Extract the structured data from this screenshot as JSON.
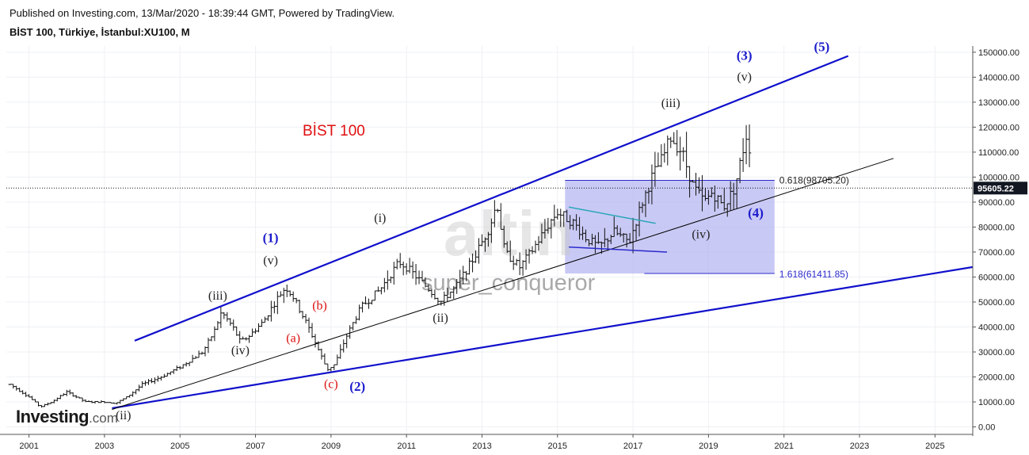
{
  "header": {
    "published": "Published on Investing.com, 13/Mar/2020 - 18:39:44 GMT, Powered by TradingView.",
    "symbol": "BİST 100, Türkiye, İstanbul:XU100, M"
  },
  "logo": {
    "main": "Investing",
    "suffix": ".com"
  },
  "watermark": {
    "brand": "altin",
    "user": "super_conqueror"
  },
  "colors": {
    "up": "#111111",
    "down": "#111111",
    "channel": "#1010cc",
    "wave_major": "#1a1acc",
    "wave_minor": "#222222",
    "wave_corrective": "#dd1111",
    "chart_title": "#e01010",
    "fib_box": "#b7b7f2",
    "fib_border": "#2a2acc",
    "price_tag": "#131722",
    "grid": "#eef0f3"
  },
  "chart_data": {
    "type": "candlestick",
    "interval": "monthly",
    "title": "BİST 100",
    "x_ticks": [
      "2001",
      "2003",
      "2005",
      "2007",
      "2009",
      "2011",
      "2013",
      "2015",
      "2017",
      "2019",
      "2021",
      "2023",
      "2025"
    ],
    "y_ticks": [
      "0.00",
      "10000.00",
      "20000.00",
      "30000.00",
      "40000.00",
      "50000.00",
      "60000.00",
      "70000.00",
      "80000.00",
      "90000.00",
      "100000.00",
      "110000.00",
      "120000.00",
      "130000.00",
      "140000.00",
      "150000.00"
    ],
    "xlim": [
      2000.4,
      2026.0
    ],
    "ylim": [
      -3000,
      152500
    ],
    "last_price": 95605.22,
    "last_price_label": "95605.22",
    "anchors": [
      [
        2000.5,
        17000
      ],
      [
        2001.0,
        12000
      ],
      [
        2001.3,
        8000
      ],
      [
        2001.6,
        10000
      ],
      [
        2002.0,
        14000
      ],
      [
        2002.5,
        10000
      ],
      [
        2003.0,
        10000
      ],
      [
        2003.3,
        9500
      ],
      [
        2003.6,
        12000
      ],
      [
        2004.0,
        17000
      ],
      [
        2004.5,
        20000
      ],
      [
        2005.0,
        24000
      ],
      [
        2005.6,
        30000
      ],
      [
        2005.9,
        38000
      ],
      [
        2006.1,
        46000
      ],
      [
        2006.4,
        40000
      ],
      [
        2006.6,
        34000
      ],
      [
        2006.8,
        36000
      ],
      [
        2007.2,
        42000
      ],
      [
        2007.6,
        52000
      ],
      [
        2007.8,
        56000
      ],
      [
        2008.0,
        52000
      ],
      [
        2008.4,
        40000
      ],
      [
        2008.9,
        23000
      ],
      [
        2009.1,
        25000
      ],
      [
        2009.4,
        36000
      ],
      [
        2009.8,
        48000
      ],
      [
        2010.3,
        55000
      ],
      [
        2010.8,
        66000
      ],
      [
        2011.0,
        64000
      ],
      [
        2011.6,
        55000
      ],
      [
        2011.9,
        50000
      ],
      [
        2012.3,
        56000
      ],
      [
        2012.8,
        68000
      ],
      [
        2013.2,
        80000
      ],
      [
        2013.4,
        90000
      ],
      [
        2013.6,
        70000
      ],
      [
        2014.0,
        64000
      ],
      [
        2014.3,
        70000
      ],
      [
        2014.8,
        82000
      ],
      [
        2015.0,
        86000
      ],
      [
        2015.4,
        82000
      ],
      [
        2015.8,
        75000
      ],
      [
        2016.1,
        72000
      ],
      [
        2016.5,
        78000
      ],
      [
        2016.9,
        74000
      ],
      [
        2017.2,
        88000
      ],
      [
        2017.5,
        100000
      ],
      [
        2017.8,
        108000
      ],
      [
        2018.0,
        116000
      ],
      [
        2018.3,
        110000
      ],
      [
        2018.6,
        96000
      ],
      [
        2018.9,
        90000
      ],
      [
        2019.1,
        94000
      ],
      [
        2019.4,
        88000
      ],
      [
        2019.7,
        96000
      ],
      [
        2019.9,
        110000
      ],
      [
        2020.05,
        120000
      ],
      [
        2020.15,
        95605
      ]
    ],
    "channel_lines": [
      {
        "from": [
          2003.8,
          34500
        ],
        "to": [
          2022.7,
          148500
        ],
        "color": "#1010cc"
      },
      {
        "from": [
          2003.2,
          7500
        ],
        "to": [
          2026.0,
          64000
        ],
        "color": "#1010cc"
      },
      {
        "from": [
          2003.2,
          7000
        ],
        "to": [
          2023.9,
          107500
        ],
        "color": "#000000"
      }
    ],
    "inner_lines": [
      {
        "from": [
          2015.3,
          88000
        ],
        "to": [
          2017.6,
          81500
        ],
        "color": "#2aa6b8"
      },
      {
        "from": [
          2015.3,
          72000
        ],
        "to": [
          2017.9,
          70000
        ],
        "color": "#2a2acc"
      }
    ],
    "fib_box": {
      "x0": 2015.2,
      "x1": 2020.75,
      "y_top": 98705.2,
      "y_bottom": 61411.85,
      "top_label": "0.618(98705.20)",
      "bottom_label": "1.618(61411.85)"
    },
    "wave_labels": [
      {
        "text": "(1)",
        "x": 2007.4,
        "y": 74000,
        "kind": "major"
      },
      {
        "text": "(2)",
        "x": 2009.7,
        "y": 14500,
        "kind": "major"
      },
      {
        "text": "(3)",
        "x": 2019.95,
        "y": 147000,
        "kind": "major"
      },
      {
        "text": "(4)",
        "x": 2020.25,
        "y": 84000,
        "kind": "major"
      },
      {
        "text": "(5)",
        "x": 2022.0,
        "y": 150500,
        "kind": "major"
      },
      {
        "text": "(i)",
        "x": 2010.3,
        "y": 82000,
        "kind": "minor"
      },
      {
        "text": "(ii)",
        "x": 2003.5,
        "y": 3000,
        "kind": "minor"
      },
      {
        "text": "(ii)",
        "x": 2011.9,
        "y": 42000,
        "kind": "minor"
      },
      {
        "text": "(iii)",
        "x": 2006.0,
        "y": 51000,
        "kind": "minor"
      },
      {
        "text": "(iii)",
        "x": 2018.0,
        "y": 128000,
        "kind": "minor"
      },
      {
        "text": "(iv)",
        "x": 2006.6,
        "y": 29000,
        "kind": "minor"
      },
      {
        "text": "(iv)",
        "x": 2018.8,
        "y": 75500,
        "kind": "minor"
      },
      {
        "text": "(v)",
        "x": 2007.4,
        "y": 65000,
        "kind": "minor"
      },
      {
        "text": "(v)",
        "x": 2019.95,
        "y": 138500,
        "kind": "minor"
      },
      {
        "text": "(a)",
        "x": 2008.0,
        "y": 34000,
        "kind": "corrective"
      },
      {
        "text": "(b)",
        "x": 2008.7,
        "y": 47000,
        "kind": "corrective"
      },
      {
        "text": "(c)",
        "x": 2009.0,
        "y": 15500,
        "kind": "corrective"
      }
    ]
  }
}
